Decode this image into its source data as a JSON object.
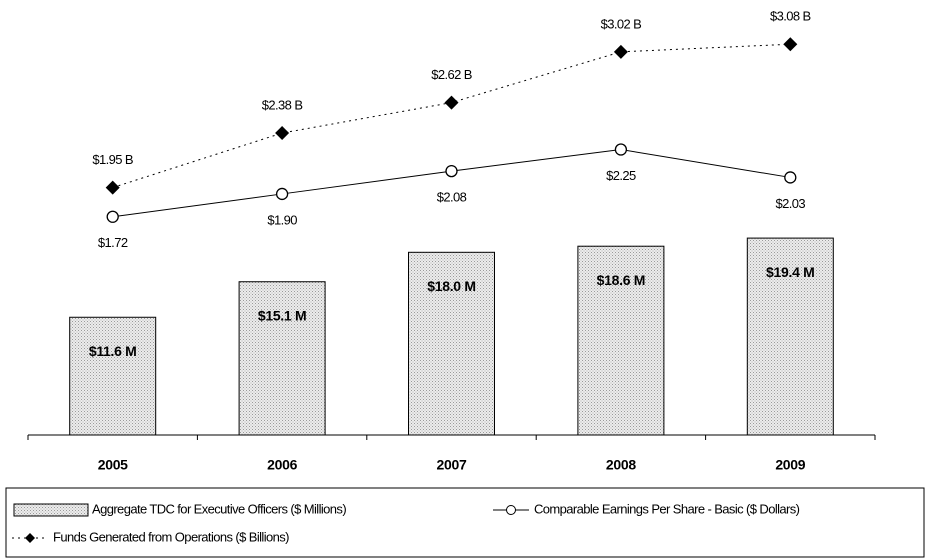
{
  "chart_data": {
    "type": "combo",
    "categories": [
      "2005",
      "2006",
      "2007",
      "2008",
      "2009"
    ],
    "ylim": [
      0,
      40
    ],
    "y2lim": [
      0,
      3.2
    ],
    "series": [
      {
        "name": "Aggregate TDC for Executive Officers ($ Millions)",
        "type": "bar",
        "color": "#d9d9d9",
        "values": [
          11.6,
          15.1,
          18.0,
          18.6,
          19.4
        ],
        "value_labels": [
          "$11.6 M",
          "$15.1 M",
          "$18.0 M",
          "$18.6 M",
          "$19.4 M"
        ]
      },
      {
        "name": "Comparable Earnings Per Share - Basic ($ Dollars)",
        "type": "line",
        "axis": "y2",
        "color": "#000000",
        "line_style": "solid",
        "marker": "circle",
        "values": [
          1.72,
          1.9,
          2.08,
          2.25,
          2.03
        ],
        "value_labels": [
          "$1.72",
          "$1.90",
          "$2.08",
          "$2.25",
          "$2.03"
        ]
      },
      {
        "name": "Funds Generated from Operations ($ Billions)",
        "type": "line",
        "axis": "y2",
        "color": "#000000",
        "line_style": "dotted",
        "marker": "diamond",
        "values": [
          1.95,
          2.38,
          2.62,
          3.02,
          3.08
        ],
        "value_labels": [
          "$1.95 B",
          "$2.38 B",
          "$2.62 B",
          "$3.02 B",
          "$3.08 B"
        ]
      }
    ]
  }
}
